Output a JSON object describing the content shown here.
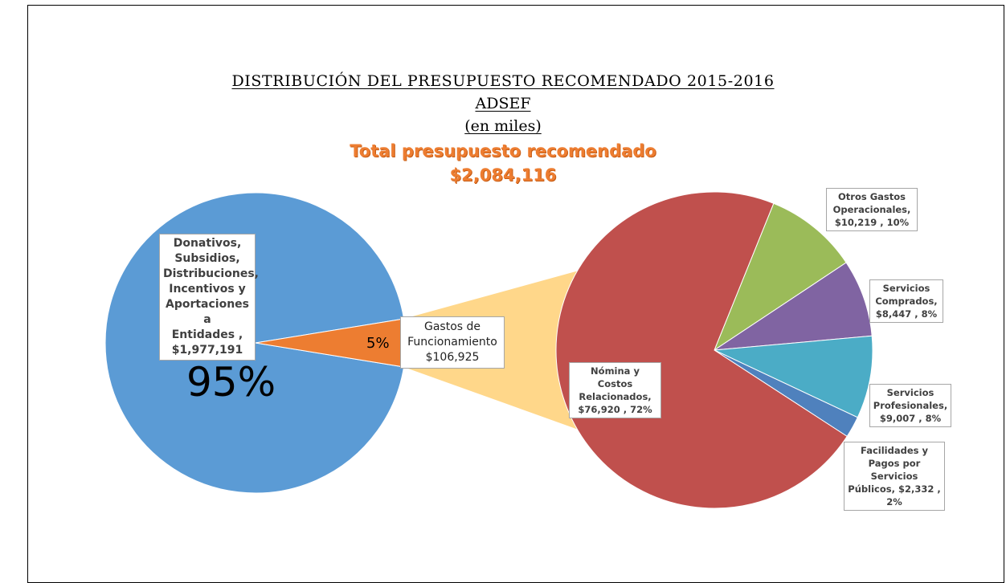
{
  "chart_data": {
    "type": "pie",
    "title": "DISTRIBUCIÓN  DEL PRESUPUESTO  RECOMENDADO  2015-2016",
    "subtitle": "ADSEF",
    "unit": "(en miles)",
    "total_label": "Total presupuesto recomendado",
    "total_value": "$2,084,116",
    "colors": {
      "donativos": "#5b9bd5",
      "gastos": "#ed7d31",
      "connector": "#ffd78a",
      "nomina": "#c0504d",
      "otros": "#9bbb59",
      "comprados": "#8064a2",
      "profesionales": "#4bacc6",
      "facilidades": "#4f81bd"
    },
    "primary_pie": {
      "slices": [
        {
          "key": "donativos",
          "label": "Donativos,\nSubsidios,\nDistribuciones,\nIncentivos y\nAportaciones a\nEntidades ,\n$1,977,191",
          "value": 1977191,
          "percent_label": "95%"
        },
        {
          "key": "gastos",
          "label": "Gastos de\nFuncionamiento\n$106,925",
          "value": 106925,
          "percent_label": "5%"
        }
      ]
    },
    "secondary_pie": {
      "slices": [
        {
          "key": "otros",
          "label": "Otros Gastos\nOperacionales,\n$10,219 , 10%",
          "value": 10219
        },
        {
          "key": "comprados",
          "label": "Servicios\nComprados,\n$8,447 , 8%",
          "value": 8447
        },
        {
          "key": "profesionales",
          "label": "Servicios\nProfesionales,\n$9,007 , 8%",
          "value": 9007
        },
        {
          "key": "facilidades",
          "label": "Facilidades y\nPagos por\nServicios\nPúblicos,  $2,332 ,\n2%",
          "value": 2332
        },
        {
          "key": "nomina",
          "label": "Nómina y Costos\nRelacionados,\n$76,920 , 72%",
          "value": 76920
        }
      ]
    }
  }
}
